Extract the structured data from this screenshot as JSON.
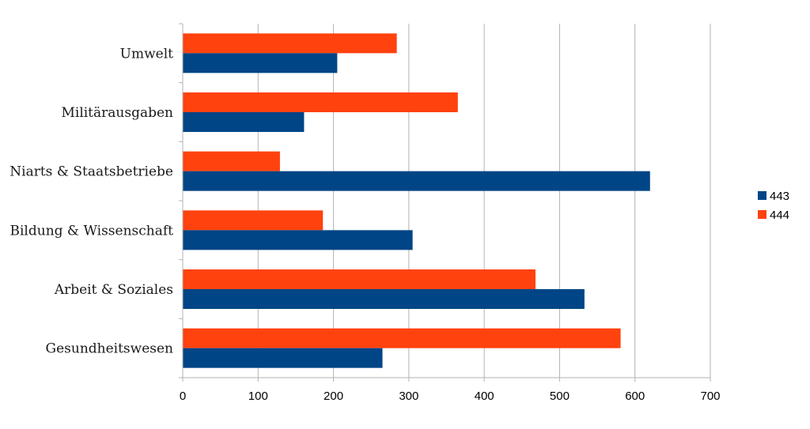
{
  "chart_data": {
    "type": "bar",
    "orientation": "horizontal",
    "categories": [
      "Umwelt",
      "Militärausgaben",
      "Niarts & Staatsbetriebe",
      "Bildung & Wissenschaft",
      "Arbeit & Soziales",
      "Gesundheitswesen"
    ],
    "series": [
      {
        "name": "443",
        "color": "#004586",
        "values": [
          205,
          161,
          620,
          305,
          533,
          265
        ]
      },
      {
        "name": "444",
        "color": "#ff420e",
        "values": [
          284,
          365,
          129,
          186,
          468,
          581
        ]
      }
    ],
    "xlim": [
      0,
      700
    ],
    "xticks": [
      0,
      100,
      200,
      300,
      400,
      500,
      600,
      700
    ],
    "grid": true,
    "legend_position": "right",
    "title": "",
    "xlabel": "",
    "ylabel": ""
  }
}
